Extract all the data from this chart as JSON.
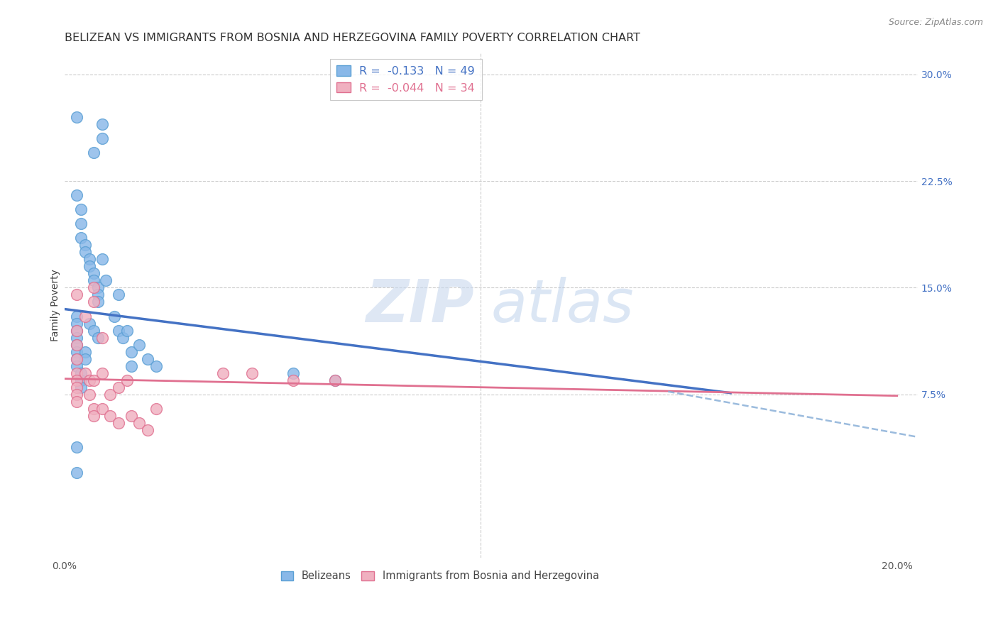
{
  "title": "BELIZEAN VS IMMIGRANTS FROM BOSNIA AND HERZEGOVINA FAMILY POVERTY CORRELATION CHART",
  "source": "Source: ZipAtlas.com",
  "ylabel": "Family Poverty",
  "xlim": [
    0.0,
    0.205
  ],
  "ylim": [
    -0.04,
    0.315
  ],
  "yticks": [
    0.075,
    0.15,
    0.225,
    0.3
  ],
  "ytick_labels": [
    "7.5%",
    "15.0%",
    "22.5%",
    "30.0%"
  ],
  "xticks": [
    0.0,
    0.05,
    0.1,
    0.15,
    0.2
  ],
  "xtick_labels": [
    "0.0%",
    "",
    "",
    "",
    "20.0%"
  ],
  "watermark_zip": "ZIP",
  "watermark_atlas": "atlas",
  "blue_scatter_x": [
    0.003,
    0.007,
    0.009,
    0.009,
    0.003,
    0.004,
    0.004,
    0.004,
    0.005,
    0.005,
    0.006,
    0.006,
    0.007,
    0.007,
    0.008,
    0.008,
    0.003,
    0.003,
    0.003,
    0.003,
    0.003,
    0.003,
    0.003,
    0.003,
    0.004,
    0.004,
    0.004,
    0.005,
    0.005,
    0.006,
    0.007,
    0.008,
    0.008,
    0.009,
    0.01,
    0.012,
    0.013,
    0.013,
    0.014,
    0.015,
    0.016,
    0.016,
    0.018,
    0.02,
    0.022,
    0.055,
    0.065,
    0.003,
    0.003
  ],
  "blue_scatter_y": [
    0.27,
    0.245,
    0.255,
    0.265,
    0.215,
    0.205,
    0.195,
    0.185,
    0.18,
    0.175,
    0.17,
    0.165,
    0.16,
    0.155,
    0.15,
    0.145,
    0.13,
    0.125,
    0.12,
    0.115,
    0.11,
    0.105,
    0.1,
    0.095,
    0.09,
    0.085,
    0.08,
    0.105,
    0.1,
    0.125,
    0.12,
    0.14,
    0.115,
    0.17,
    0.155,
    0.13,
    0.145,
    0.12,
    0.115,
    0.12,
    0.105,
    0.095,
    0.11,
    0.1,
    0.095,
    0.09,
    0.085,
    0.038,
    0.02
  ],
  "pink_scatter_x": [
    0.003,
    0.003,
    0.003,
    0.003,
    0.003,
    0.003,
    0.003,
    0.003,
    0.003,
    0.005,
    0.005,
    0.006,
    0.006,
    0.007,
    0.007,
    0.007,
    0.007,
    0.007,
    0.009,
    0.009,
    0.009,
    0.011,
    0.011,
    0.013,
    0.013,
    0.015,
    0.016,
    0.018,
    0.02,
    0.022,
    0.038,
    0.045,
    0.055,
    0.065
  ],
  "pink_scatter_y": [
    0.145,
    0.12,
    0.11,
    0.1,
    0.09,
    0.085,
    0.08,
    0.075,
    0.07,
    0.13,
    0.09,
    0.085,
    0.075,
    0.15,
    0.14,
    0.085,
    0.065,
    0.06,
    0.115,
    0.09,
    0.065,
    0.075,
    0.06,
    0.08,
    0.055,
    0.085,
    0.06,
    0.055,
    0.05,
    0.065,
    0.09,
    0.09,
    0.085,
    0.085
  ],
  "blue_line_x": [
    0.0,
    0.16
  ],
  "blue_line_y": [
    0.135,
    0.076
  ],
  "pink_line_x": [
    0.0,
    0.2
  ],
  "pink_line_y": [
    0.086,
    0.074
  ],
  "dashed_line_x": [
    0.145,
    0.205
  ],
  "dashed_line_y": [
    0.077,
    0.045
  ],
  "blue_dot_color": "#89b8e8",
  "blue_edge_color": "#5a9fd4",
  "pink_dot_color": "#f0b0c0",
  "pink_edge_color": "#e07090",
  "blue_line_color": "#4472c4",
  "pink_line_color": "#e07090",
  "dashed_line_color": "#8ab0d8",
  "background_color": "#ffffff",
  "grid_color": "#cccccc",
  "title_color": "#333333",
  "source_color": "#888888",
  "ytick_color": "#4472c4",
  "title_fontsize": 11.5,
  "axis_label_fontsize": 10,
  "tick_fontsize": 10,
  "legend1_label1": "R =  -0.133   N = 49",
  "legend1_label2": "R =  -0.044   N = 34",
  "legend2_label1": "Belizeans",
  "legend2_label2": "Immigrants from Bosnia and Herzegovina"
}
